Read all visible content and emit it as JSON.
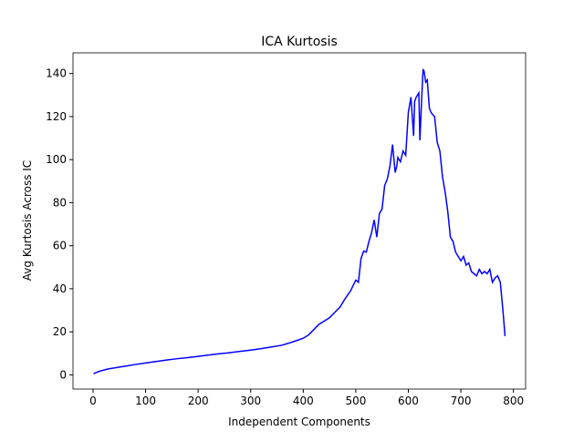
{
  "chart_data": {
    "type": "line",
    "title": "ICA Kurtosis",
    "xlabel": "Independent Components",
    "ylabel": "Avg Kurtosis Across IC",
    "x": [
      1,
      10,
      20,
      30,
      40,
      60,
      80,
      100,
      120,
      140,
      160,
      180,
      200,
      220,
      240,
      260,
      280,
      300,
      320,
      340,
      360,
      380,
      400,
      410,
      420,
      430,
      440,
      450,
      460,
      470,
      480,
      490,
      500,
      505,
      510,
      515,
      520,
      525,
      530,
      535,
      540,
      545,
      550,
      555,
      560,
      565,
      570,
      575,
      578,
      580,
      585,
      590,
      595,
      600,
      605,
      610,
      612,
      615,
      620,
      622,
      625,
      628,
      630,
      633,
      636,
      640,
      643,
      646,
      650,
      655,
      660,
      665,
      670,
      675,
      680,
      685,
      690,
      695,
      700,
      705,
      710,
      715,
      720,
      725,
      730,
      735,
      740,
      745,
      750,
      755,
      760,
      765,
      770,
      775,
      780,
      784
    ],
    "series": [
      {
        "name": "Avg Kurtosis",
        "color": "#0000ff",
        "values": [
          0.5,
          1.5,
          2.2,
          2.8,
          3.2,
          4,
          4.8,
          5.5,
          6.2,
          6.9,
          7.5,
          8,
          8.6,
          9.2,
          9.8,
          10.3,
          10.9,
          11.5,
          12.2,
          13,
          13.8,
          15.3,
          17,
          18.5,
          21,
          23.5,
          25,
          26.5,
          29,
          31.5,
          35.5,
          39,
          44,
          43,
          54,
          57.5,
          57,
          62,
          66,
          72,
          64,
          75,
          77,
          88,
          91,
          97,
          107,
          94,
          97,
          101,
          99,
          104,
          102,
          122,
          129,
          111,
          127,
          129,
          131,
          109,
          126,
          142,
          141,
          136,
          137,
          124,
          122,
          121,
          120,
          108,
          104,
          92,
          85,
          76,
          64,
          62,
          57,
          55,
          53,
          55,
          51,
          52,
          48,
          47,
          46,
          49,
          47,
          48,
          47,
          49,
          43,
          45,
          46,
          43,
          30,
          18
        ]
      }
    ],
    "xlim": [
      -38.15,
      823.15
    ],
    "ylim": [
      -6.6,
      149.6
    ],
    "xticks": [
      0,
      100,
      200,
      300,
      400,
      500,
      600,
      700,
      800
    ],
    "yticks": [
      0,
      20,
      40,
      60,
      80,
      100,
      120,
      140
    ]
  }
}
